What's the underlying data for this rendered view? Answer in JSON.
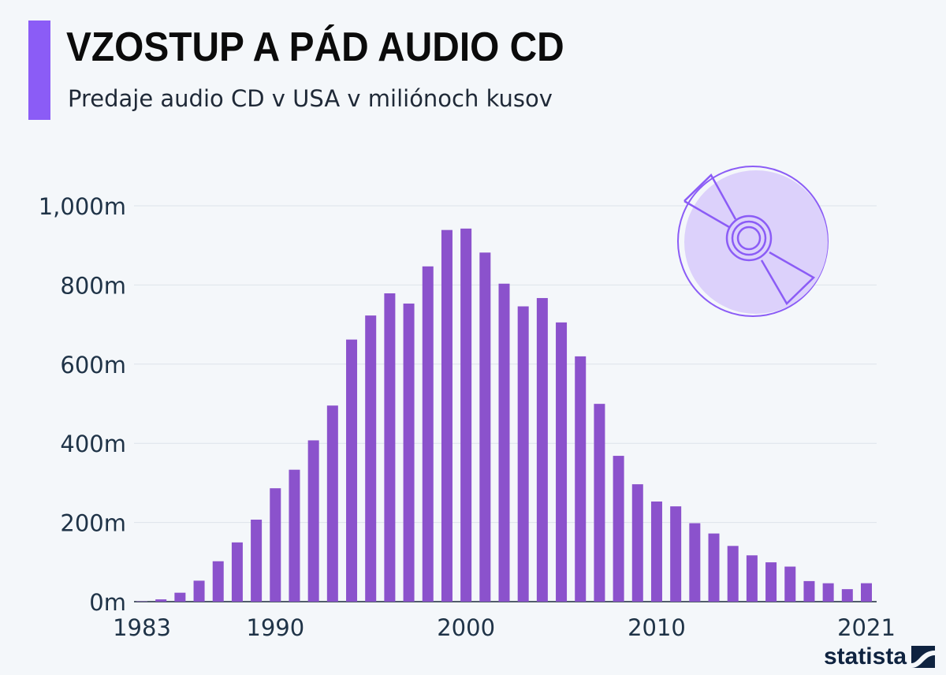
{
  "header": {
    "title": "VZOSTUP A PÁD AUDIO CD",
    "subtitle": "Predaje audio CD v USA v miliónoch kusov"
  },
  "brand": {
    "name": "statista"
  },
  "colors": {
    "bar": "#8b52cc",
    "accent": "#8b5cf6",
    "cd_fill": "#dcd1fb",
    "cd_stroke": "#8b5cf6"
  },
  "icon": "cd-disc-icon",
  "chart_data": {
    "type": "bar",
    "title": "VZOSTUP A PÁD AUDIO CD",
    "xlabel": "",
    "ylabel": "",
    "ylim": [
      0,
      1000
    ],
    "yticks": [
      0,
      200,
      400,
      600,
      800,
      1000
    ],
    "ytick_labels": [
      "0m",
      "200m",
      "400m",
      "600m",
      "800m",
      "1,000m"
    ],
    "xtick_labels": [
      "1983",
      "1990",
      "2000",
      "2010",
      "2021"
    ],
    "grid": true,
    "categories": [
      1983,
      1984,
      1985,
      1986,
      1987,
      1988,
      1989,
      1990,
      1991,
      1992,
      1993,
      1994,
      1995,
      1996,
      1997,
      1998,
      1999,
      2000,
      2001,
      2002,
      2003,
      2004,
      2005,
      2006,
      2007,
      2008,
      2009,
      2010,
      2011,
      2012,
      2013,
      2014,
      2015,
      2016,
      2017,
      2018,
      2019,
      2020,
      2021
    ],
    "values": [
      0.8,
      5.8,
      22.6,
      53,
      102.1,
      149.7,
      207.2,
      286.5,
      333.3,
      407.5,
      495.4,
      662.1,
      722.9,
      778.9,
      753.1,
      847,
      938.9,
      942.5,
      881.9,
      803.3,
      746,
      767,
      705.4,
      619.7,
      499.7,
      368.4,
      296.6,
      253,
      240.8,
      198.2,
      172.2,
      140.8,
      117,
      99.4,
      88.6,
      52,
      46.5,
      31.6,
      46.6
    ]
  }
}
